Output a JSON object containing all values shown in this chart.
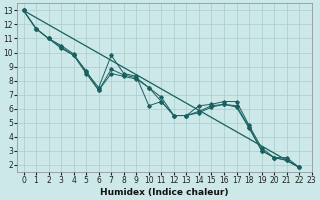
{
  "xlabel": "Humidex (Indice chaleur)",
  "bg_color": "#cce8e8",
  "grid_color": "#aacccc",
  "line_color": "#1a6060",
  "xlim": [
    -0.5,
    23
  ],
  "ylim": [
    1.5,
    13.5
  ],
  "xticks": [
    0,
    1,
    2,
    3,
    4,
    5,
    6,
    7,
    8,
    9,
    10,
    11,
    12,
    13,
    14,
    15,
    16,
    17,
    18,
    19,
    20,
    21,
    22,
    23
  ],
  "yticks": [
    2,
    3,
    4,
    5,
    6,
    7,
    8,
    9,
    10,
    11,
    12,
    13
  ],
  "series": [
    [
      13.0,
      11.7,
      11.0,
      10.5,
      9.9,
      8.6,
      7.5,
      9.8,
      8.5,
      8.3,
      6.2,
      6.5,
      5.5,
      5.5,
      6.2,
      6.3,
      6.5,
      6.5,
      4.8,
      3.2,
      2.5,
      2.5,
      1.8
    ],
    [
      13.0,
      11.7,
      11.0,
      10.4,
      9.8,
      8.7,
      7.3,
      8.8,
      8.4,
      8.2,
      7.5,
      6.8,
      5.5,
      5.5,
      5.8,
      6.2,
      6.3,
      6.2,
      4.7,
      3.0,
      2.5,
      2.3,
      1.8
    ],
    [
      13.0,
      11.7,
      11.0,
      10.3,
      9.8,
      8.5,
      7.3,
      8.5,
      8.3,
      8.1,
      7.5,
      6.5,
      5.5,
      5.5,
      5.7,
      6.1,
      6.3,
      6.1,
      4.6,
      3.0,
      2.5,
      2.3,
      1.8
    ],
    [
      13.0,
      null,
      null,
      null,
      null,
      null,
      null,
      null,
      null,
      null,
      null,
      null,
      null,
      null,
      null,
      null,
      null,
      null,
      null,
      null,
      null,
      null,
      1.8
    ]
  ],
  "marker_series": [
    0,
    1,
    2
  ],
  "straight_series": [
    3
  ],
  "tick_fontsize": 5.5,
  "xlabel_fontsize": 6.5,
  "xlabel_fontweight": "bold"
}
